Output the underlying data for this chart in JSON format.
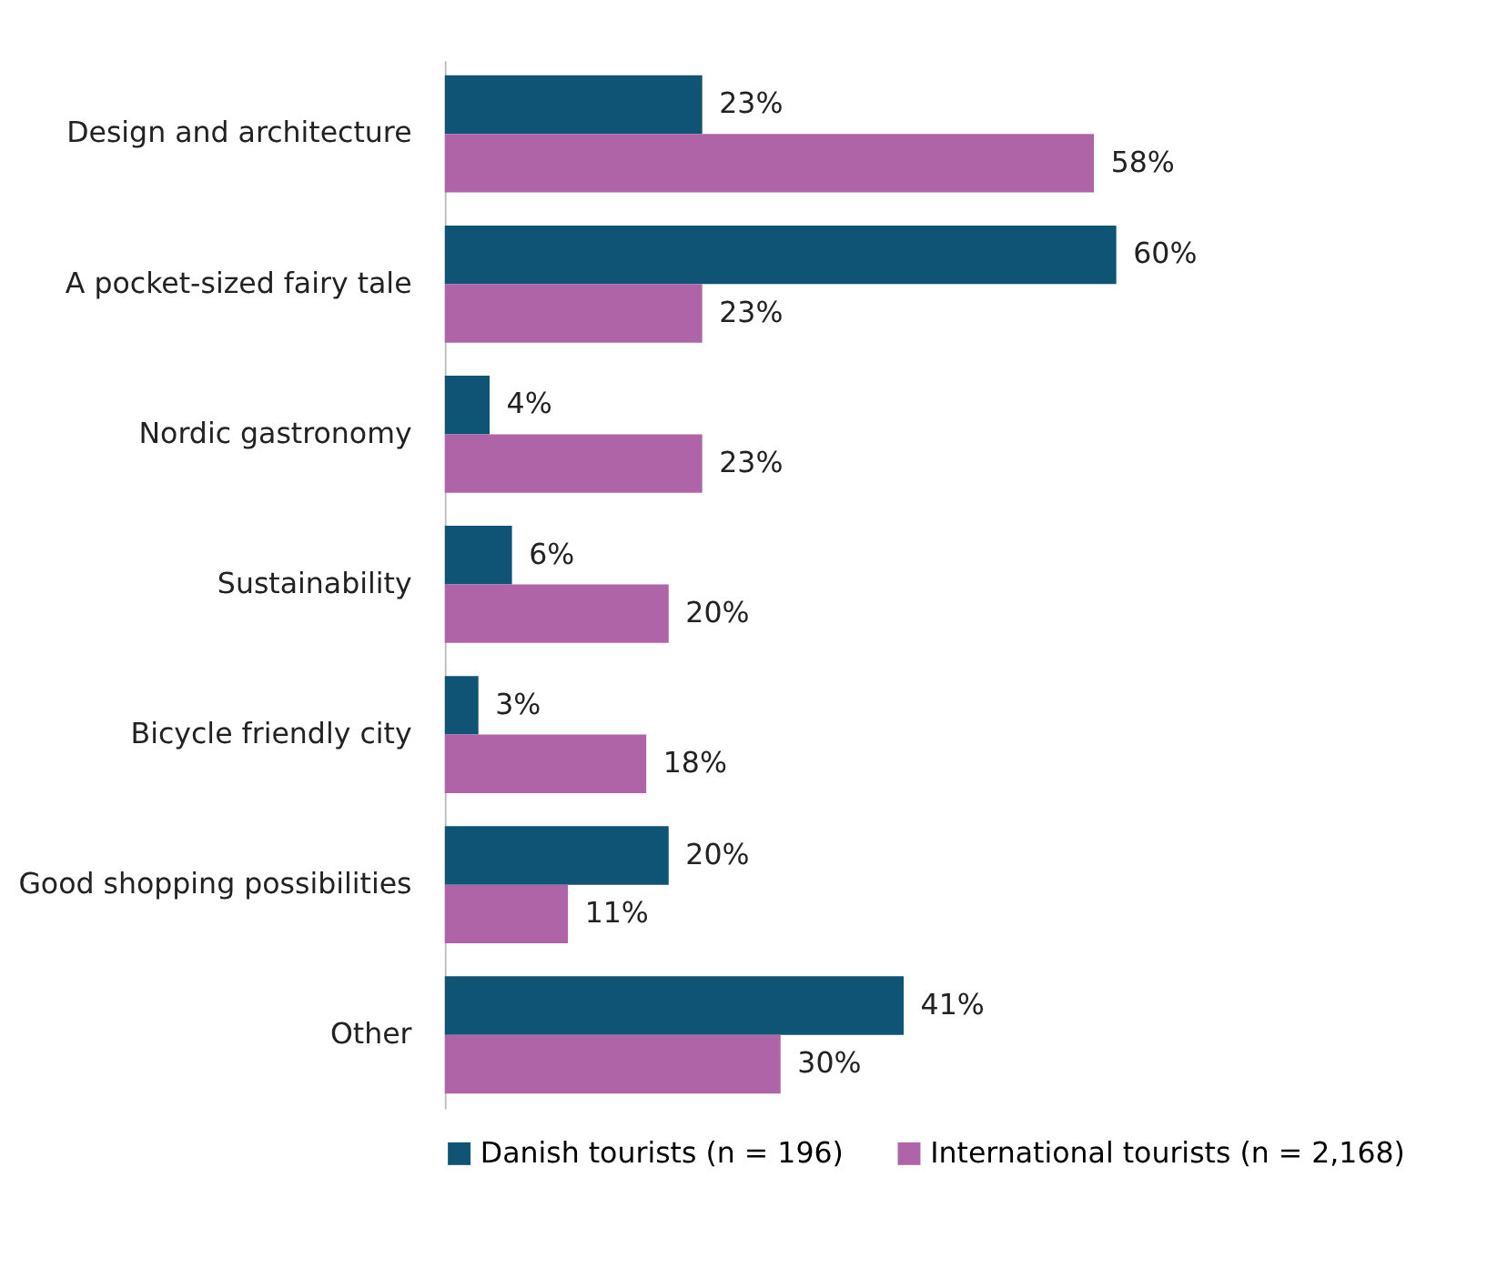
{
  "chart_data": {
    "type": "bar",
    "orientation": "horizontal",
    "data_labels": true,
    "legend": "bottom",
    "grid": false,
    "categories": [
      "Design and architecture",
      "A pocket-sized fairy tale",
      "Nordic gastronomy",
      "Sustainability",
      "Bicycle friendly city",
      "Good shopping possibilities",
      "Other"
    ],
    "series": [
      {
        "name": "Danish tourists (n = 196)",
        "color": "#0f5474",
        "values": [
          23,
          60,
          4,
          6,
          3,
          20,
          41
        ],
        "value_labels": [
          "23%",
          "60%",
          "4%",
          "6%",
          "3%",
          "20%",
          "41%"
        ]
      },
      {
        "name": "International tourists (n = 2,168)",
        "color": "#b064a8",
        "values": [
          58,
          23,
          23,
          20,
          18,
          11,
          30
        ],
        "value_labels": [
          "58%",
          "23%",
          "23%",
          "20%",
          "18%",
          "11%",
          "30%"
        ]
      }
    ]
  }
}
